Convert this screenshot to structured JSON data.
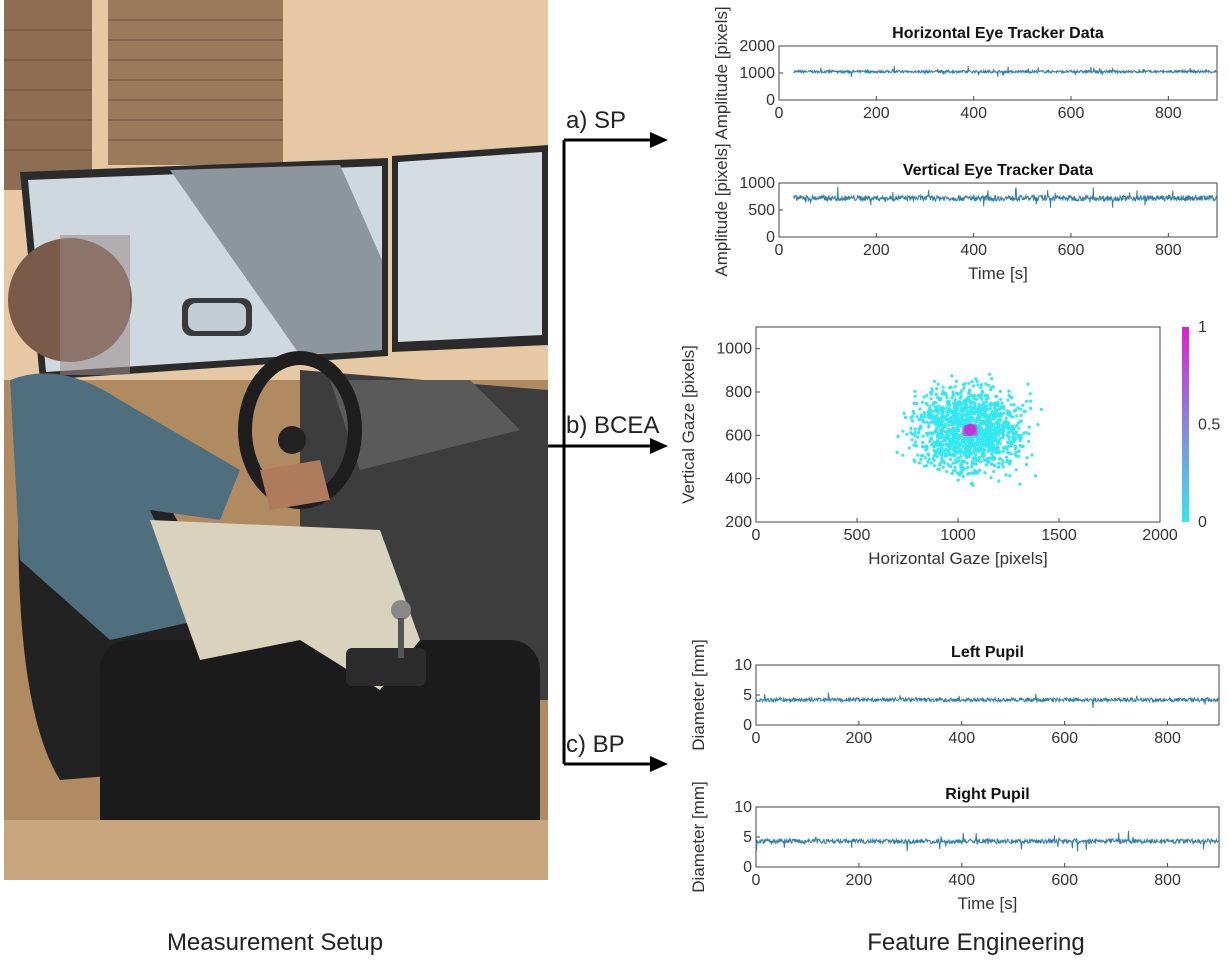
{
  "captions": {
    "left": "Measurement Setup",
    "right": "Feature Engineering"
  },
  "arrows": {
    "a": "a) SP",
    "b": "b) BCEA",
    "c": "c) BP"
  },
  "photo": {
    "description_icon": "driving-simulator-photo"
  },
  "chart_data": [
    {
      "type": "line",
      "title": "Horizontal Eye Tracker Data",
      "xlabel": "",
      "ylabel": "Amplitude [pixels]",
      "xlim": [
        0,
        900
      ],
      "ylim": [
        0,
        2000
      ],
      "xticks": [
        "0",
        "200",
        "400",
        "600",
        "800"
      ],
      "yticks": [
        "0",
        "1000",
        "2000"
      ],
      "series": [
        {
          "values_hint": "noisy signal around 1050",
          "x_start": 30,
          "x_end": 900,
          "mean": 1050,
          "spread": 120
        }
      ],
      "color": "#2f7fa8"
    },
    {
      "type": "line",
      "title": "Vertical Eye Tracker Data",
      "xlabel": "Time [s]",
      "ylabel": "Amplitude [pixels]",
      "xlim": [
        0,
        900
      ],
      "ylim": [
        0,
        1000
      ],
      "xticks": [
        "0",
        "200",
        "400",
        "600",
        "800"
      ],
      "yticks": [
        "0",
        "500",
        "1000"
      ],
      "series": [
        {
          "x_start": 30,
          "x_end": 900,
          "mean": 720,
          "spread": 130
        }
      ],
      "color": "#2f7fa8"
    },
    {
      "type": "scatter",
      "title": "",
      "xlabel": "Horizontal Gaze [pixels]",
      "ylabel": "Vertical Gaze [pixels]",
      "xlim": [
        0,
        2000
      ],
      "ylim": [
        200,
        1100
      ],
      "xticks": [
        "0",
        "500",
        "1000",
        "1500",
        "2000"
      ],
      "yticks": [
        "200",
        "400",
        "600",
        "800",
        "1000"
      ],
      "center": [
        1060,
        625
      ],
      "colorbar": {
        "ticks": [
          "0",
          "0.5",
          "1"
        ],
        "low": "#33e8f0",
        "high": "#e020d0"
      }
    },
    {
      "type": "line",
      "title": "Left Pupil",
      "xlabel": "",
      "ylabel": "Diameter [mm]",
      "xlim": [
        0,
        900
      ],
      "ylim": [
        0,
        10
      ],
      "xticks": [
        "0",
        "200",
        "400",
        "600",
        "800"
      ],
      "yticks": [
        "0",
        "5",
        "10"
      ],
      "series": [
        {
          "x_start": 0,
          "x_end": 900,
          "mean": 4.2,
          "spread": 0.8
        }
      ],
      "color": "#2f7fa8"
    },
    {
      "type": "line",
      "title": "Right Pupil",
      "xlabel": "Time [s]",
      "ylabel": "Diameter [mm]",
      "xlim": [
        0,
        900
      ],
      "ylim": [
        0,
        10
      ],
      "xticks": [
        "0",
        "200",
        "400",
        "600",
        "800"
      ],
      "yticks": [
        "0",
        "5",
        "10"
      ],
      "series": [
        {
          "x_start": 0,
          "x_end": 900,
          "mean": 4.3,
          "spread": 1.0
        }
      ],
      "color": "#2f7fa8"
    }
  ]
}
